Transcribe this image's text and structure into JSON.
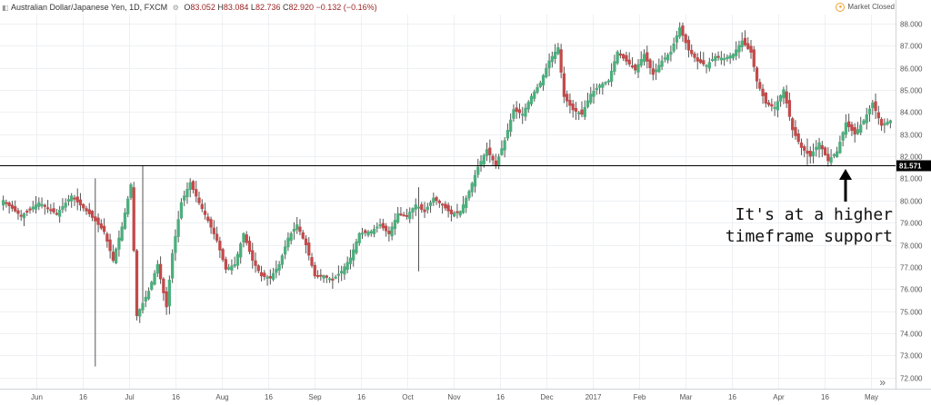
{
  "header": {
    "symbol_title": "Australian Dollar/Japanese Yen, 1D, FXCM",
    "open_label": "O",
    "open_value": "83.052",
    "high_label": "H",
    "high_value": "83.084",
    "low_label": "L",
    "low_value": "82.736",
    "close_label": "C",
    "close_value": "82.920",
    "change": "−0.132 (−0.16%)"
  },
  "market_status": "Market Closed",
  "annotation": {
    "line1": "It's at a higher",
    "line2": "timeframe support"
  },
  "colors": {
    "up": "#4caf7d",
    "down": "#c34a4a",
    "grid": "#eef0f3",
    "axis_text": "#555555",
    "support": "#000000"
  },
  "icons": [
    "chart-icon",
    "settings-icon",
    "market-closed-icon",
    "scroll-forward-icon"
  ],
  "chart_data": {
    "type": "candlestick",
    "title": "Australian Dollar/Japanese Yen, 1D, FXCM",
    "ylim": [
      71.5,
      88.4
    ],
    "y_ticks": [
      72.0,
      73.0,
      74.0,
      75.0,
      76.0,
      77.0,
      78.0,
      79.0,
      80.0,
      81.0,
      82.0,
      83.0,
      84.0,
      85.0,
      86.0,
      87.0,
      88.0
    ],
    "x_ticks": [
      "Jun",
      "16",
      "Jul",
      "16",
      "Aug",
      "16",
      "Sep",
      "16",
      "Oct",
      "Nov",
      "16",
      "Dec",
      "2017",
      "Feb",
      "Mar",
      "16",
      "Apr",
      "16",
      "May"
    ],
    "support_level": 81.571,
    "support_label": "81.571",
    "anchors": [
      [
        0,
        80.0
      ],
      [
        6,
        79.3
      ],
      [
        12,
        79.9
      ],
      [
        18,
        79.4
      ],
      [
        23,
        80.2
      ],
      [
        29,
        79.4
      ],
      [
        34,
        78.6
      ],
      [
        37,
        77.3
      ],
      [
        40,
        78.8
      ],
      [
        43,
        80.7
      ],
      [
        45,
        74.8
      ],
      [
        49,
        75.9
      ],
      [
        52,
        77.1
      ],
      [
        55,
        75.2
      ],
      [
        57,
        77.6
      ],
      [
        60,
        79.9
      ],
      [
        63,
        80.8
      ],
      [
        66,
        79.9
      ],
      [
        69,
        79.1
      ],
      [
        72,
        78.2
      ],
      [
        75,
        76.9
      ],
      [
        78,
        77.1
      ],
      [
        81,
        78.5
      ],
      [
        84,
        77.3
      ],
      [
        87,
        76.6
      ],
      [
        90,
        76.5
      ],
      [
        93,
        77.1
      ],
      [
        96,
        78.3
      ],
      [
        99,
        78.9
      ],
      [
        102,
        78.0
      ],
      [
        105,
        76.6
      ],
      [
        108,
        76.6
      ],
      [
        111,
        76.4
      ],
      [
        114,
        76.8
      ],
      [
        117,
        77.4
      ],
      [
        120,
        78.5
      ],
      [
        124,
        78.6
      ],
      [
        127,
        78.9
      ],
      [
        130,
        78.5
      ],
      [
        133,
        79.4
      ],
      [
        136,
        79.3
      ],
      [
        139,
        79.8
      ],
      [
        142,
        79.5
      ],
      [
        145,
        80.1
      ],
      [
        148,
        79.8
      ],
      [
        151,
        79.4
      ],
      [
        154,
        79.5
      ],
      [
        157,
        80.4
      ],
      [
        160,
        81.5
      ],
      [
        163,
        82.3
      ],
      [
        166,
        81.6
      ],
      [
        169,
        82.7
      ],
      [
        172,
        84.1
      ],
      [
        175,
        83.9
      ],
      [
        178,
        84.7
      ],
      [
        181,
        85.3
      ],
      [
        184,
        86.3
      ],
      [
        187,
        86.9
      ],
      [
        189,
        84.7
      ],
      [
        192,
        84.1
      ],
      [
        195,
        83.9
      ],
      [
        198,
        84.8
      ],
      [
        201,
        85.2
      ],
      [
        204,
        85.4
      ],
      [
        207,
        86.7
      ],
      [
        210,
        86.3
      ],
      [
        213,
        85.9
      ],
      [
        216,
        86.6
      ],
      [
        219,
        85.7
      ],
      [
        222,
        86.3
      ],
      [
        225,
        86.7
      ],
      [
        228,
        87.8
      ],
      [
        231,
        86.8
      ],
      [
        234,
        86.3
      ],
      [
        237,
        86.1
      ],
      [
        240,
        86.5
      ],
      [
        243,
        86.4
      ],
      [
        246,
        86.6
      ],
      [
        249,
        87.2
      ],
      [
        252,
        86.7
      ],
      [
        254,
        85.4
      ],
      [
        257,
        84.4
      ],
      [
        260,
        84.2
      ],
      [
        263,
        85.0
      ],
      [
        266,
        83.2
      ],
      [
        269,
        82.4
      ],
      [
        272,
        82.0
      ],
      [
        275,
        82.6
      ],
      [
        278,
        81.8
      ],
      [
        281,
        82.2
      ],
      [
        284,
        83.5
      ],
      [
        287,
        83.0
      ],
      [
        290,
        83.6
      ],
      [
        293,
        84.4
      ],
      [
        296,
        83.4
      ],
      [
        299,
        83.6
      ]
    ],
    "spikes": [
      [
        31,
        81.0,
        72.5
      ],
      [
        47,
        81.6,
        77.8
      ],
      [
        140,
        80.6,
        76.8
      ],
      [
        271,
        82.8,
        81.6
      ]
    ]
  }
}
